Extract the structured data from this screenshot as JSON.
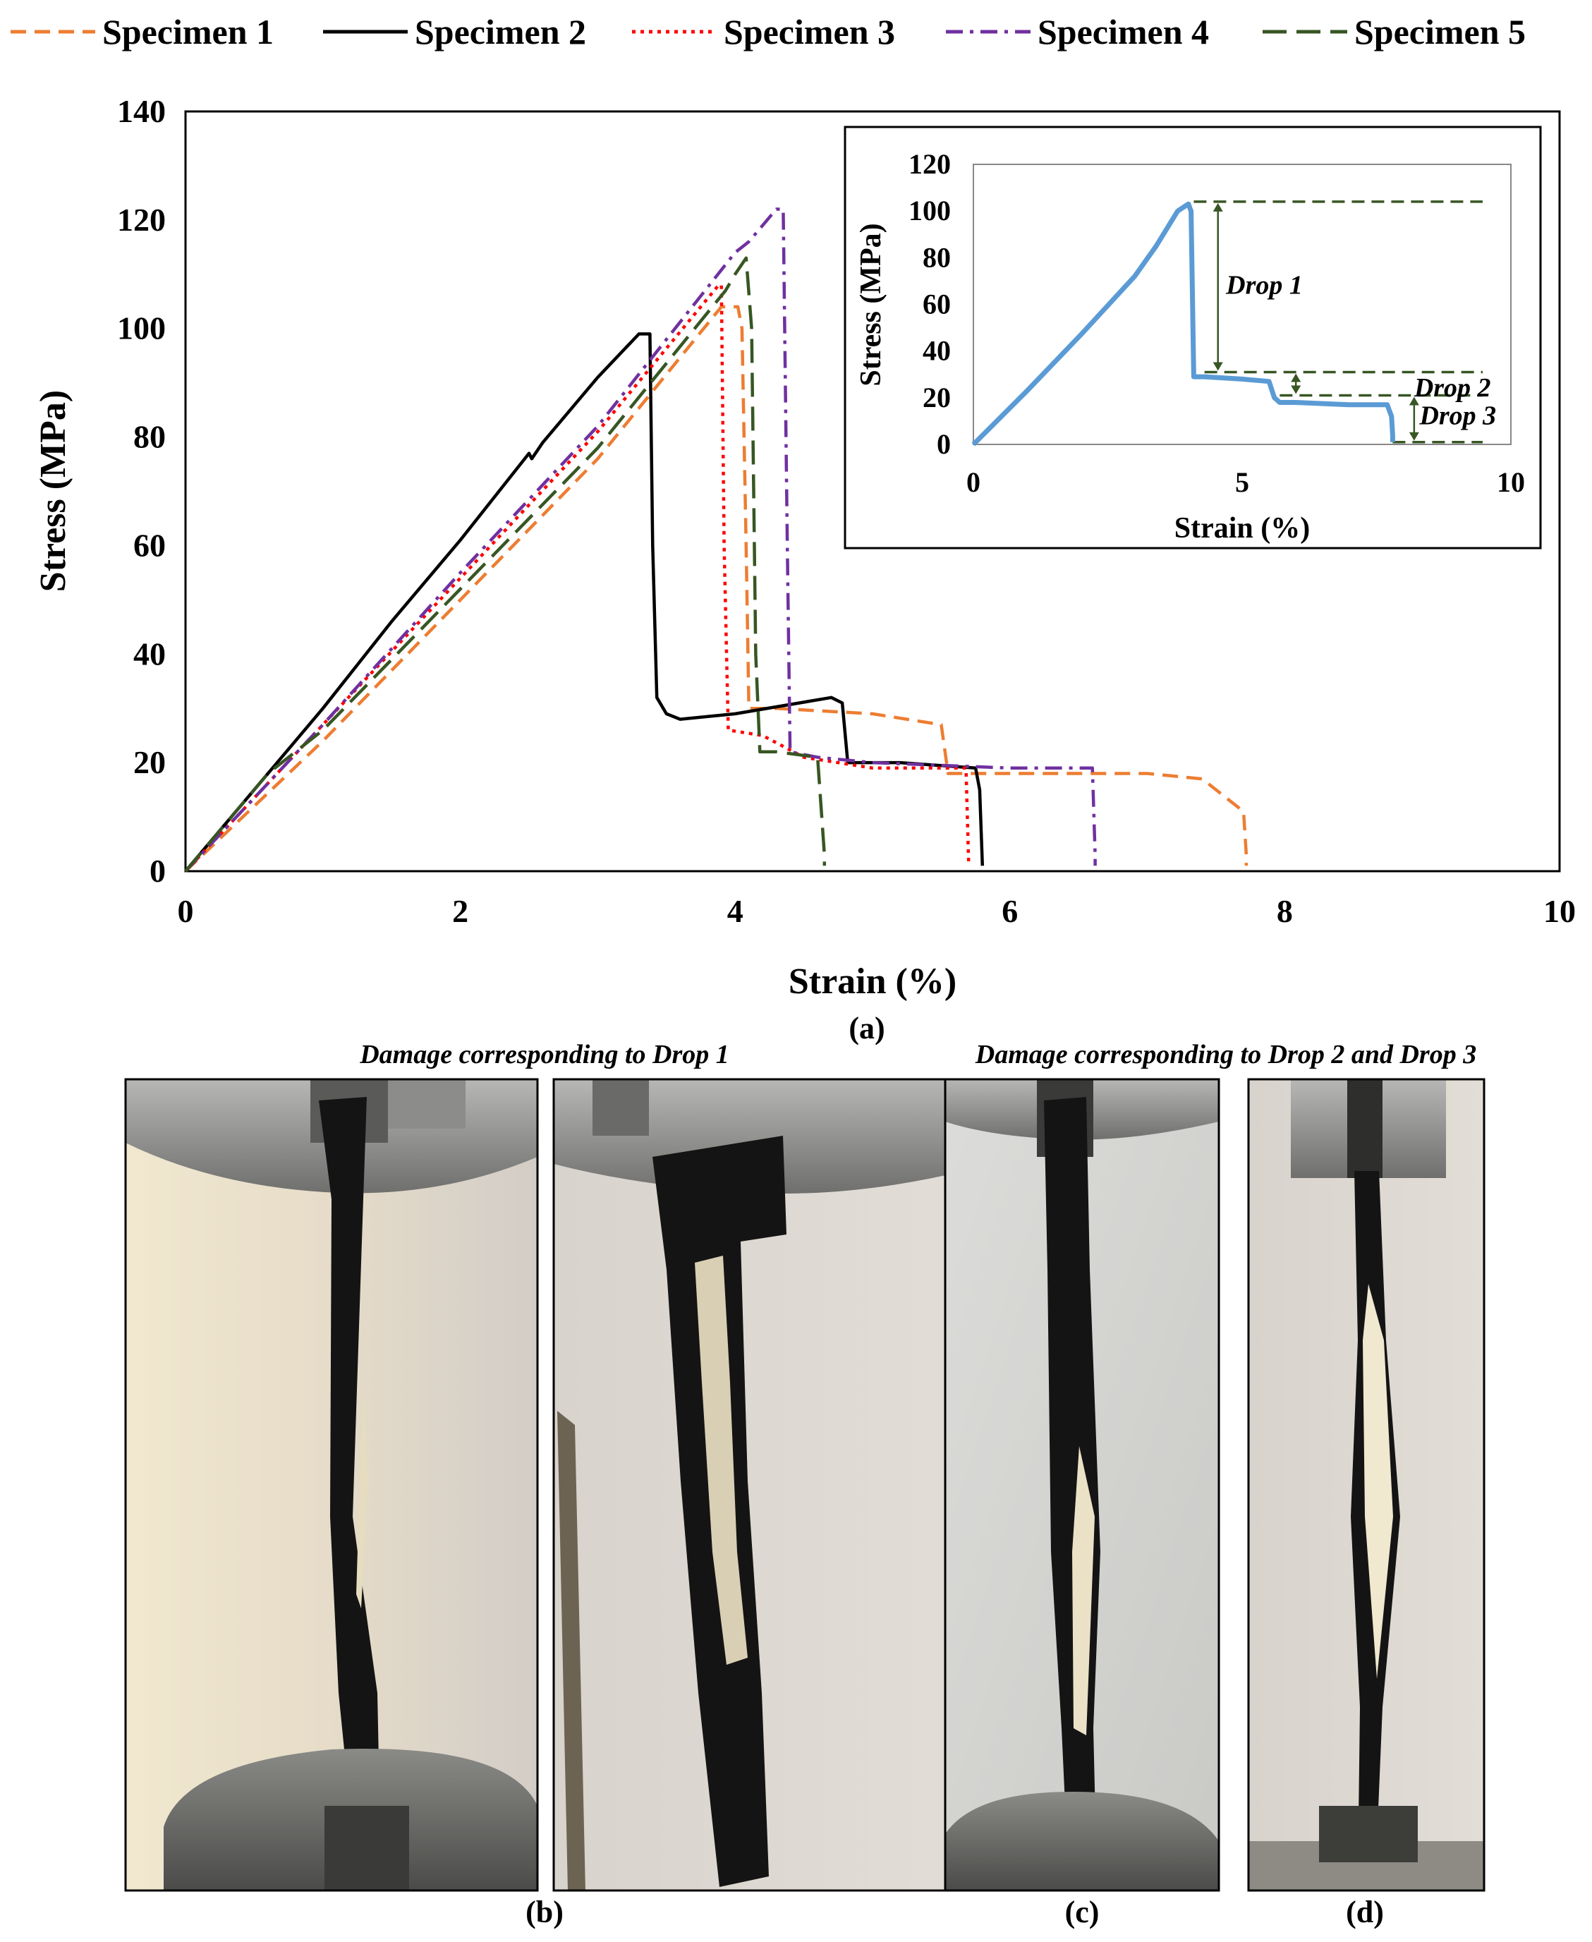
{
  "chart_data": [
    {
      "type": "line",
      "title": "",
      "xlabel": "Strain (%)",
      "ylabel": "Stress (MPa)",
      "xlim": [
        0,
        10
      ],
      "ylim": [
        0,
        140
      ],
      "xticks": [
        "0",
        "2",
        "4",
        "6",
        "8",
        "10"
      ],
      "yticks": [
        "0",
        "20",
        "40",
        "60",
        "80",
        "100",
        "120",
        "140"
      ],
      "grid": false,
      "legend": "top",
      "series": [
        {
          "name": "Specimen 1",
          "color": "#ED7D31",
          "dash": "dashed",
          "x": [
            0,
            1,
            2,
            3,
            3.9,
            4.02,
            4.05,
            4.08,
            4.1,
            4.3,
            5.0,
            5.5,
            5.55,
            6.2,
            7.0,
            7.4,
            7.55,
            7.7,
            7.72,
            7.72
          ],
          "y": [
            0,
            24,
            50,
            76,
            104,
            104,
            100,
            60,
            30,
            30,
            29,
            27,
            18,
            18,
            18,
            17,
            14,
            11,
            3,
            1
          ]
        },
        {
          "name": "Specimen 2",
          "color": "#000000",
          "dash": "solid",
          "x": [
            0,
            0.5,
            1,
            1.5,
            2,
            2.5,
            2.52,
            2.6,
            3,
            3.3,
            3.38,
            3.4,
            3.43,
            3.5,
            3.6,
            4.0,
            4.7,
            4.78,
            4.82,
            5.2,
            5.75,
            5.78,
            5.8
          ],
          "y": [
            0,
            15,
            30,
            46,
            61,
            77,
            76,
            79,
            91,
            99,
            99,
            60,
            32,
            29,
            28,
            29,
            32,
            31,
            20,
            20,
            19,
            15,
            1
          ]
        },
        {
          "name": "Specimen 3",
          "color": "#FF0000",
          "dash": "dotted",
          "x": [
            0,
            1,
            2,
            3,
            3.88,
            3.9,
            3.92,
            3.95,
            4.2,
            4.5,
            5.0,
            5.68,
            5.7
          ],
          "y": [
            0,
            27,
            54,
            81,
            108,
            108,
            60,
            26,
            25,
            21,
            19,
            19,
            1
          ]
        },
        {
          "name": "Specimen 4",
          "color": "#7030A0",
          "dash": "dashdot",
          "x": [
            0,
            1,
            2,
            3,
            4.0,
            4.1,
            4.3,
            4.35,
            4.38,
            4.4,
            4.6,
            5.0,
            6.0,
            6.6,
            6.62,
            6.62
          ],
          "y": [
            0,
            27,
            55,
            82,
            114,
            116,
            122,
            122,
            60,
            22,
            21,
            20,
            19,
            19,
            3,
            1
          ]
        },
        {
          "name": "Specimen 5",
          "color": "#375623",
          "dash": "longdash",
          "x": [
            0,
            0.6,
            1,
            2,
            3,
            3.93,
            4.0,
            4.08,
            4.12,
            4.15,
            4.18,
            4.3,
            4.6,
            4.65,
            4.65
          ],
          "y": [
            0,
            18,
            26,
            52,
            78,
            107,
            110,
            113,
            100,
            40,
            22,
            22,
            21,
            3,
            1
          ]
        }
      ],
      "caption": "(a)"
    },
    {
      "type": "line",
      "title": "",
      "xlabel": "Strain (%)",
      "ylabel": "Stress (MPa)",
      "xlim": [
        0,
        10
      ],
      "ylim": [
        0,
        120
      ],
      "xticks": [
        "0",
        "5",
        "10"
      ],
      "yticks": [
        "0",
        "20",
        "40",
        "60",
        "80",
        "100",
        "120"
      ],
      "series": [
        {
          "color": "#5B9BD5",
          "x": [
            0,
            1,
            2,
            3,
            3.4,
            3.8,
            4.0,
            4.05,
            4.1,
            4.3,
            5.0,
            5.5,
            5.6,
            5.7,
            6.0,
            7.0,
            7.7,
            7.78,
            7.8,
            7.8
          ],
          "y": [
            0,
            23,
            47,
            72,
            85,
            100,
            103,
            100,
            29,
            29,
            28,
            27,
            20,
            18,
            18,
            17,
            17,
            12,
            4,
            1
          ]
        }
      ],
      "annotations": [
        {
          "text": "Drop 1",
          "from": 104,
          "to": 31
        },
        {
          "text": "Drop 2",
          "from": 31,
          "to": 21
        },
        {
          "text": "Drop 3",
          "from": 21,
          "to": 1
        }
      ]
    }
  ],
  "panels": {
    "caption_drop1": "Damage corresponding to Drop 1",
    "caption_drop23": "Damage corresponding to Drop 2 and Drop 3",
    "label_b": "(b)",
    "label_c": "(c)",
    "label_d": "(d)"
  }
}
